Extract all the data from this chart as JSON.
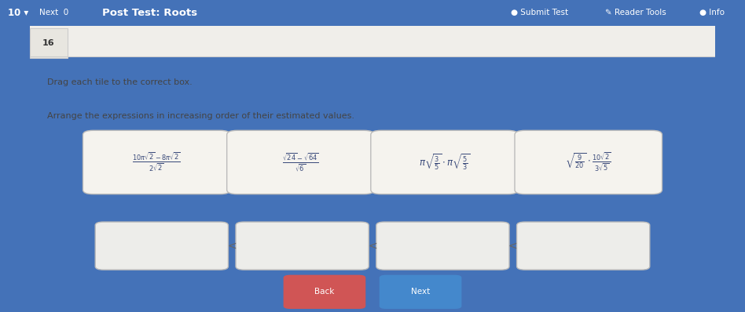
{
  "title": "Post Test: Roots",
  "nav_left": "10",
  "question_number": "16",
  "instruction1": "Drag each tile to the correct box.",
  "instruction2": "Arrange the expressions in increasing order of their estimated values.",
  "tile_exprs": [
    "$\\frac{10\\pi\\sqrt{2}-8\\pi\\sqrt{2}}{2\\sqrt{2}}$",
    "$\\frac{\\sqrt{24}-\\sqrt{64}}{\\sqrt{6}}$",
    "$\\pi\\sqrt{\\frac{3}{5}}\\cdot\\pi\\sqrt{\\frac{5}{3}}$",
    "$\\sqrt{\\frac{9}{20}}\\cdot\\frac{10\\sqrt{2}}{3\\sqrt{5}}$"
  ],
  "nav_bg": "#4472b8",
  "content_bg": "#dedad3",
  "tile_bg": "#f5f3ee",
  "tile_border": "#aaaaaa",
  "box_bg": "#ededea",
  "box_border": "#aaaaaa",
  "text_color": "#3a4a7a",
  "nav_text": "#ffffff",
  "button_back_color": "#d05555",
  "button_next_color": "#4488cc",
  "separator_color": "#666666"
}
